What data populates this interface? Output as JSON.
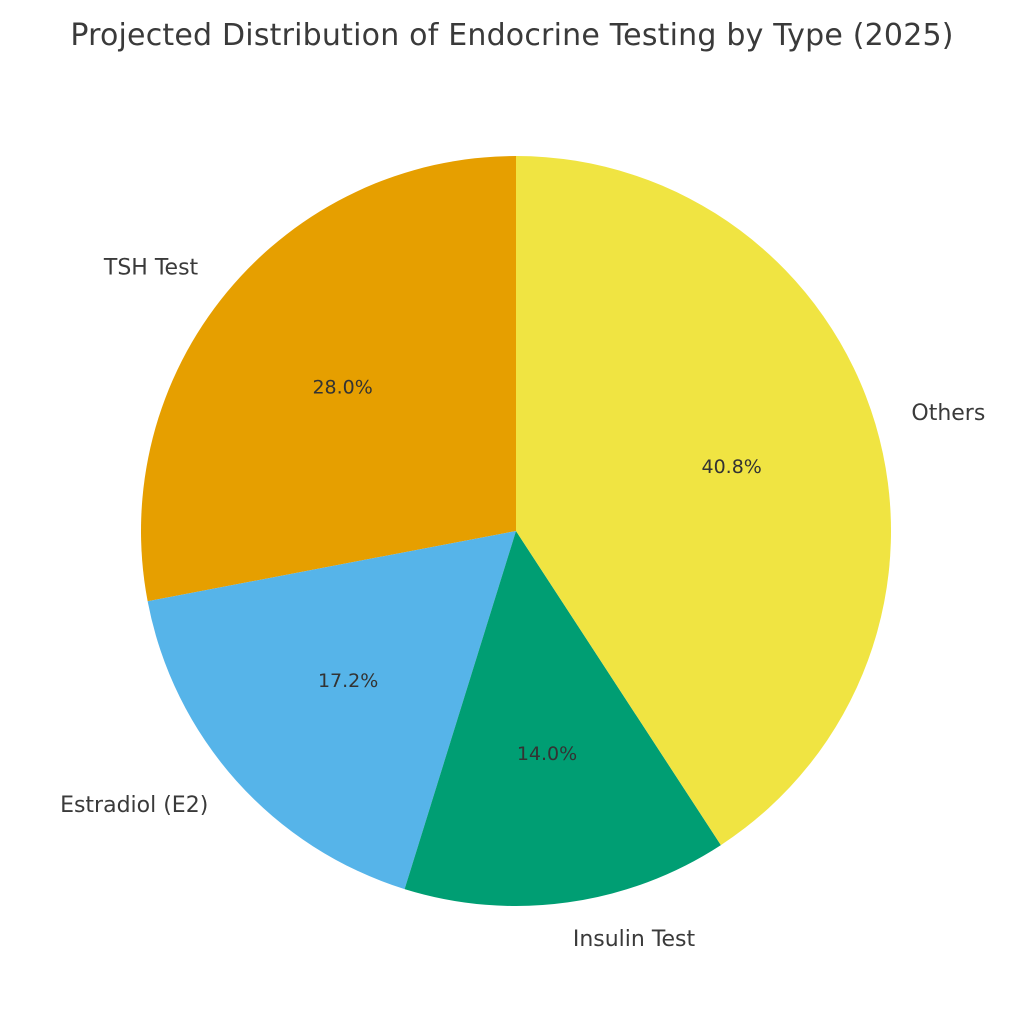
{
  "chart_data": {
    "type": "pie",
    "title": "Projected Distribution of Endocrine Testing by Type (2025)",
    "categories": [
      "TSH Test",
      "Estradiol (E2)",
      "Insulin Test",
      "Others"
    ],
    "values": [
      28.0,
      17.2,
      14.0,
      40.8
    ],
    "value_labels": [
      "28.0%",
      "17.2%",
      "14.0%",
      "40.8%"
    ],
    "colors": [
      "#E69F00",
      "#56B4E9",
      "#009E73",
      "#F0E442"
    ],
    "start_angle_deg": 90,
    "direction": "counterclockwise",
    "legend": "none"
  }
}
